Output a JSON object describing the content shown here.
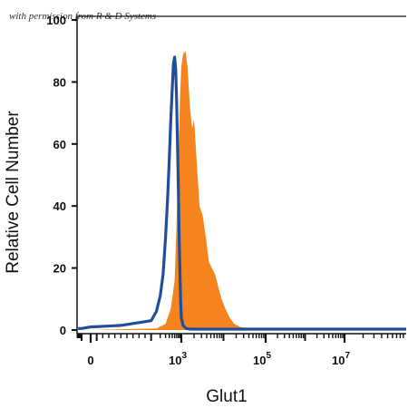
{
  "chart_data": {
    "type": "area",
    "title": "",
    "credit": "with permission from R & D Systems",
    "xlabel": "Glut1",
    "ylabel": "Relative Cell Number",
    "xscale": "biexponential",
    "ylim": [
      0,
      100
    ],
    "y_ticks": [
      "0",
      "20",
      "40",
      "60",
      "80",
      "100"
    ],
    "x_ticks": [
      {
        "base": "0",
        "exp": ""
      },
      {
        "base": "10",
        "exp": "3"
      },
      {
        "base": "10",
        "exp": "5"
      },
      {
        "base": "10",
        "exp": "7"
      }
    ],
    "series": [
      {
        "style": "filled",
        "color": "#f5841f",
        "x": [
          -600,
          0,
          150,
          300,
          450,
          600,
          700,
          800,
          900,
          1000,
          1100,
          1250,
          1400,
          1600,
          1800,
          2000,
          2300,
          2700,
          3200,
          3800,
          4500,
          5300,
          6300,
          7500,
          9000,
          11000,
          14000,
          18000,
          25000,
          35000,
          60000,
          150000,
          1000000,
          10000000,
          100000000
        ],
        "y": [
          0,
          0,
          0.5,
          2,
          7,
          16,
          35,
          55,
          75,
          85,
          89,
          90,
          85,
          72,
          65,
          68,
          55,
          40,
          37,
          30,
          22,
          20,
          18,
          14,
          10,
          7,
          4,
          2,
          1,
          0.5,
          0.3,
          0.2,
          0.1,
          0.1,
          0.1
        ]
      },
      {
        "style": "line",
        "color": "#1f4e9a",
        "x": [
          -600,
          -300,
          -100,
          0,
          50,
          100,
          150,
          200,
          250,
          300,
          350,
          400,
          450,
          500,
          550,
          600,
          650,
          700,
          750,
          800,
          850,
          900,
          950,
          1000,
          1100,
          1300,
          1600,
          2000,
          3000,
          10000,
          100000,
          1000000,
          10000000,
          100000000
        ],
        "y": [
          0.5,
          0.5,
          0.5,
          1,
          1.5,
          3,
          6,
          11,
          18,
          30,
          42,
          55,
          68,
          78,
          86,
          88,
          84,
          74,
          60,
          44,
          30,
          18,
          9,
          4,
          1.5,
          0.5,
          0.3,
          0.3,
          0.3,
          0.3,
          0.3,
          0.3,
          0.3,
          0.3
        ]
      }
    ]
  }
}
